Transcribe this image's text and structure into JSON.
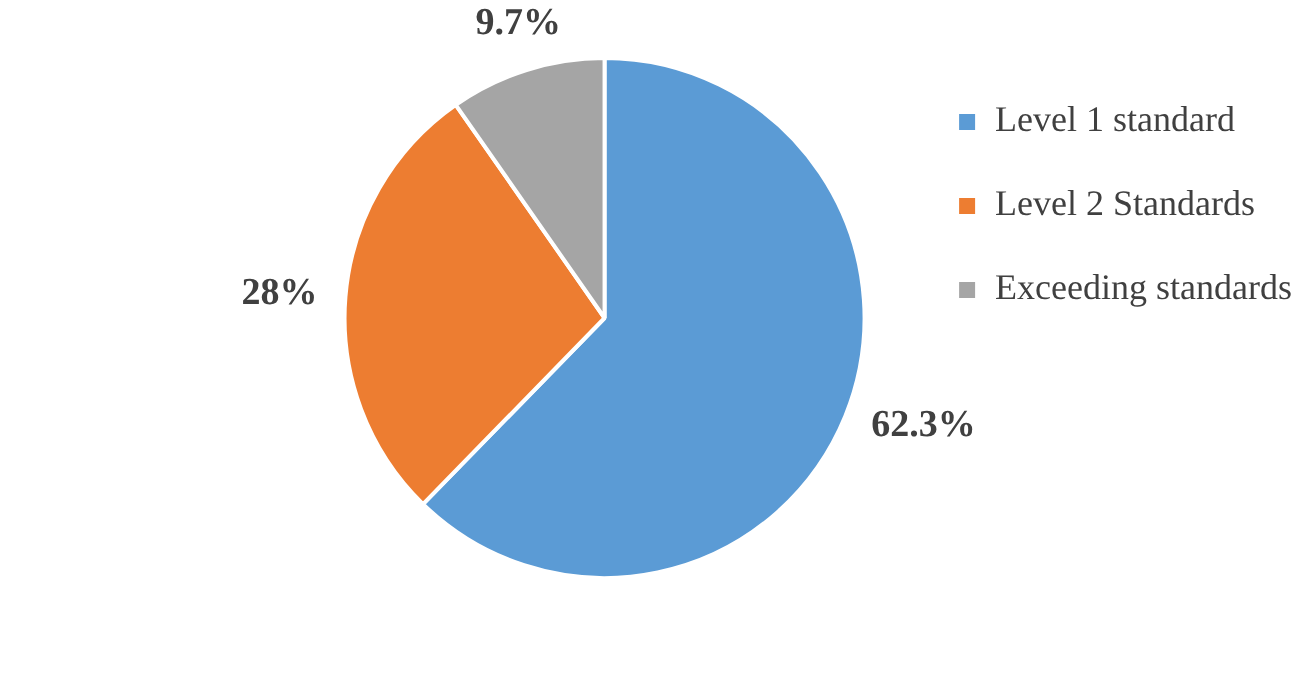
{
  "chart_data": {
    "type": "pie",
    "categories": [
      "Level 1 standard",
      "Level 2 Standards",
      "Exceeding standards"
    ],
    "values": [
      62.3,
      28,
      9.7
    ],
    "value_labels": [
      "62.3%",
      "28%",
      "9.7%"
    ],
    "colors": [
      "#5b9bd5",
      "#ed7d31",
      "#a5a5a5"
    ],
    "legend": "right"
  }
}
